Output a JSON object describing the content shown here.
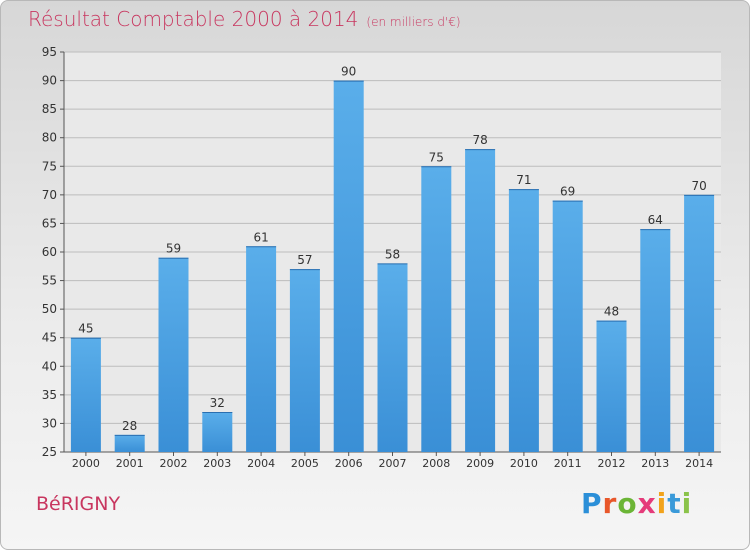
{
  "chart_data": {
    "type": "bar",
    "title": "Résultat Comptable 2000 à 2014",
    "subtitle": "(en milliers d'€)",
    "categories": [
      "2000",
      "2001",
      "2002",
      "2003",
      "2004",
      "2005",
      "2006",
      "2007",
      "2008",
      "2009",
      "2010",
      "2011",
      "2012",
      "2013",
      "2014"
    ],
    "values": [
      45,
      28,
      59,
      32,
      61,
      57,
      90,
      58,
      75,
      78,
      71,
      69,
      48,
      64,
      70
    ],
    "ylim": [
      25,
      95
    ],
    "yticks": [
      25,
      30,
      35,
      40,
      45,
      50,
      55,
      60,
      65,
      70,
      75,
      80,
      85,
      90,
      95
    ],
    "xlabel": "",
    "ylabel": "",
    "grid": true,
    "bar_color": "#3a8fd6"
  },
  "footer": {
    "commune": "BéRIGNY",
    "logo_letters": [
      "P",
      "r",
      "o",
      "x",
      "i",
      "t",
      "i"
    ],
    "logo_colors": [
      "#2b8fd8",
      "#e8572a",
      "#6bb536",
      "#e53b7a",
      "#f2a31b",
      "#3a9ad9",
      "#8bc34a"
    ]
  }
}
